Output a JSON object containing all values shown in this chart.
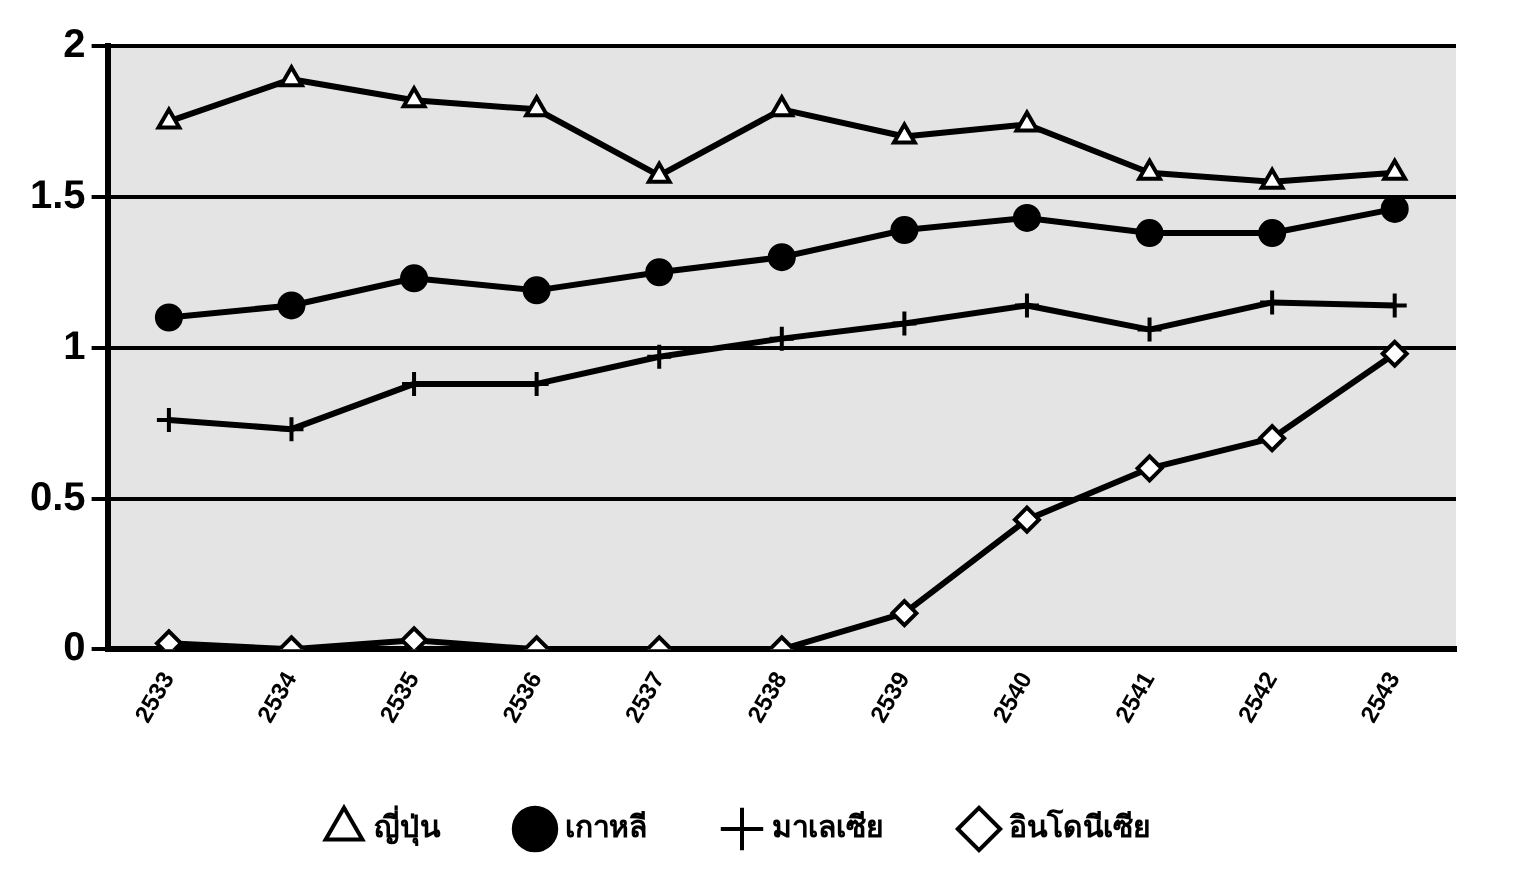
{
  "chart_data": {
    "type": "line",
    "categories": [
      "2533",
      "2534",
      "2535",
      "2536",
      "2537",
      "2538",
      "2539",
      "2540",
      "2541",
      "2542",
      "2543"
    ],
    "series": [
      {
        "name": "ญี่ปุ่น",
        "color": "#000000",
        "marker": "triangle",
        "values": [
          1.75,
          1.89,
          1.82,
          1.79,
          1.57,
          1.79,
          1.7,
          1.74,
          1.58,
          1.55,
          1.58
        ]
      },
      {
        "name": "เกาหลี",
        "color": "#000000",
        "marker": "circle",
        "values": [
          1.1,
          1.14,
          1.23,
          1.19,
          1.25,
          1.3,
          1.39,
          1.43,
          1.38,
          1.38,
          1.46
        ]
      },
      {
        "name": "มาเลเซีย",
        "color": "#000000",
        "marker": "cross",
        "values": [
          0.76,
          0.73,
          0.88,
          0.88,
          0.97,
          1.03,
          1.08,
          1.14,
          1.06,
          1.15,
          1.14
        ]
      },
      {
        "name": "อินโดนีเซีย",
        "color": "#000000",
        "marker": "diamond",
        "values": [
          0.02,
          0,
          0.03,
          0,
          0,
          0,
          0.12,
          0.43,
          0.6,
          0.7,
          0.98
        ]
      }
    ],
    "ylim": [
      0,
      2
    ],
    "yticks": [
      0,
      0.5,
      1,
      1.5,
      2
    ],
    "grid": "y",
    "legend": "bottom",
    "line_style": "solid"
  }
}
